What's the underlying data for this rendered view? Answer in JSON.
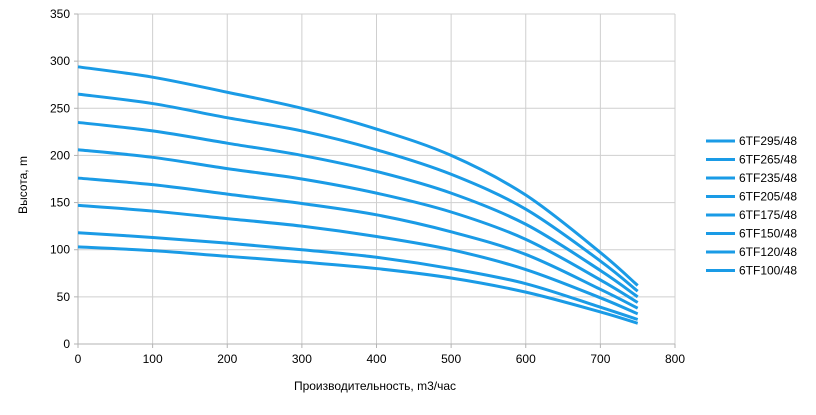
{
  "chart_data": {
    "type": "line",
    "title": "",
    "xlabel": "Производительность, m3/час",
    "ylabel": "Высота, m",
    "xlim": [
      0,
      800
    ],
    "ylim": [
      0,
      350
    ],
    "x_ticks": [
      0,
      100,
      200,
      300,
      400,
      500,
      600,
      700,
      800
    ],
    "y_ticks": [
      0,
      50,
      100,
      150,
      200,
      250,
      300,
      350
    ],
    "grid": true,
    "legend_position": "right",
    "line_color": "#1a9be6",
    "x": [
      0,
      100,
      200,
      300,
      400,
      500,
      600,
      700,
      750
    ],
    "series": [
      {
        "name": "6TF295/48",
        "values": [
          294,
          283,
          267,
          250,
          228,
          200,
          158,
          97,
          62
        ]
      },
      {
        "name": "6TF265/48",
        "values": [
          265,
          255,
          240,
          226,
          206,
          180,
          143,
          88,
          56
        ]
      },
      {
        "name": "6TF235/48",
        "values": [
          235,
          226,
          213,
          200,
          183,
          160,
          127,
          78,
          50
        ]
      },
      {
        "name": "6TF205/48",
        "values": [
          206,
          198,
          186,
          175,
          160,
          140,
          111,
          68,
          44
        ]
      },
      {
        "name": "6TF175/48",
        "values": [
          176,
          169,
          159,
          149,
          137,
          119,
          95,
          58,
          38
        ]
      },
      {
        "name": "6TF150/48",
        "values": [
          147,
          141,
          133,
          125,
          114,
          100,
          79,
          49,
          32
        ]
      },
      {
        "name": "6TF120/48",
        "values": [
          118,
          113,
          107,
          100,
          92,
          80,
          64,
          39,
          26
        ]
      },
      {
        "name": "6TF100/48",
        "values": [
          103,
          99,
          93,
          87,
          80,
          70,
          55,
          34,
          22
        ]
      }
    ]
  }
}
